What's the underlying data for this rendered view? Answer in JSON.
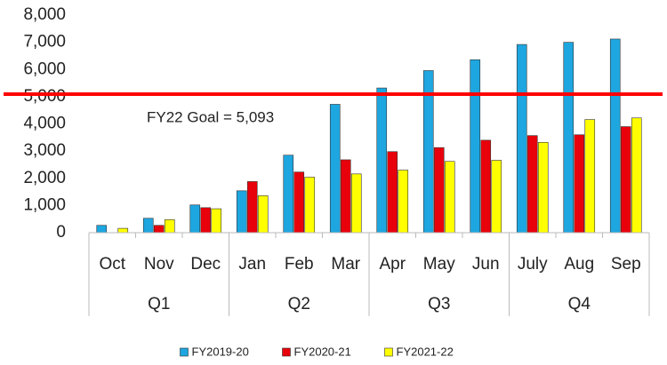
{
  "chart_data": {
    "type": "bar",
    "categories": [
      "Oct",
      "Nov",
      "Dec",
      "Jan",
      "Feb",
      "Mar",
      "Apr",
      "May",
      "Jun",
      "July",
      "Aug",
      "Sep"
    ],
    "groups": [
      "Q1",
      "Q2",
      "Q3",
      "Q4"
    ],
    "series": [
      {
        "name": "FY2019-20",
        "color": "#1ea6e0",
        "values": [
          270,
          530,
          1020,
          1540,
          2850,
          4720,
          5320,
          5960,
          6360,
          6920,
          7000,
          7120
        ]
      },
      {
        "name": "FY2020-21",
        "color": "#e8000b",
        "values": [
          0,
          270,
          920,
          1880,
          2230,
          2680,
          2980,
          3130,
          3400,
          3570,
          3600,
          3900
        ]
      },
      {
        "name": "FY2021-22",
        "color": "#ffff00",
        "values": [
          160,
          480,
          880,
          1360,
          2040,
          2160,
          2300,
          2620,
          2660,
          3320,
          4160,
          4220
        ]
      }
    ],
    "goal": {
      "value": 5093,
      "label": "FY22 Goal = 5,093",
      "color": "#ff0000"
    },
    "ylim": [
      0,
      8000
    ],
    "yticks": [
      {
        "value": 0,
        "label": "0"
      },
      {
        "value": 1000,
        "label": "1,000"
      },
      {
        "value": 2000,
        "label": "2,000"
      },
      {
        "value": 3000,
        "label": "3,000"
      },
      {
        "value": 4000,
        "label": "4,000"
      },
      {
        "value": 5000,
        "label": "5,000"
      },
      {
        "value": 6000,
        "label": "6,000"
      },
      {
        "value": 7000,
        "label": "7,000"
      },
      {
        "value": 8000,
        "label": "8,000"
      }
    ],
    "grid": false,
    "legend": "bottom"
  }
}
